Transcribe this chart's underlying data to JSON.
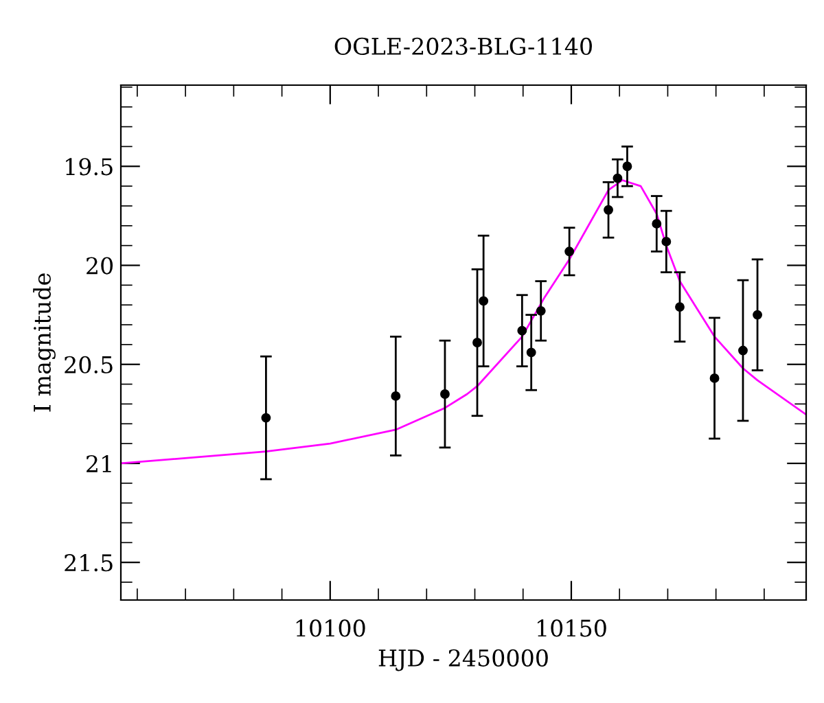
{
  "chart_data": {
    "type": "scatter",
    "title": "OGLE-2023-BLG-1140",
    "xlabel": "HJD - 2450000",
    "ylabel": "I magnitude",
    "xlim": [
      10056.6,
      10198.7
    ],
    "ylim": [
      21.69,
      19.09
    ],
    "xticks": [
      {
        "value": 10060,
        "label": null
      },
      {
        "value": 10070,
        "label": null
      },
      {
        "value": 10080,
        "label": null
      },
      {
        "value": 10090,
        "label": null
      },
      10100,
      {
        "value": 10110,
        "label": null
      },
      {
        "value": 10120,
        "label": null
      },
      {
        "value": 10130,
        "label": null
      },
      {
        "value": 10140,
        "label": null
      },
      10150,
      {
        "value": 10160,
        "label": null
      },
      {
        "value": 10170,
        "label": null
      },
      {
        "value": 10180,
        "label": null
      },
      {
        "value": 10190,
        "label": null
      }
    ],
    "yticks": [
      {
        "value": 19.1,
        "label": null
      },
      {
        "value": 19.2,
        "label": null
      },
      {
        "value": 19.3,
        "label": null
      },
      {
        "value": 19.4,
        "label": null
      },
      19.5,
      {
        "value": 19.6,
        "label": null
      },
      {
        "value": 19.7,
        "label": null
      },
      {
        "value": 19.8,
        "label": null
      },
      {
        "value": 19.9,
        "label": null
      },
      20,
      {
        "value": 20.1,
        "label": null
      },
      {
        "value": 20.2,
        "label": null
      },
      {
        "value": 20.3,
        "label": null
      },
      {
        "value": 20.4,
        "label": null
      },
      20.5,
      {
        "value": 20.6,
        "label": null
      },
      {
        "value": 20.7,
        "label": null
      },
      {
        "value": 20.8,
        "label": null
      },
      {
        "value": 20.9,
        "label": null
      },
      21,
      {
        "value": 21.1,
        "label": null
      },
      {
        "value": 21.2,
        "label": null
      },
      {
        "value": 21.3,
        "label": null
      },
      {
        "value": 21.4,
        "label": null
      },
      21.5,
      {
        "value": 21.6,
        "label": null
      }
    ],
    "grid": false,
    "legend": false,
    "series": [
      {
        "type": "line",
        "color": "#ff00ff",
        "marker": "none",
        "line_style": "solid",
        "x": [
          10056.6,
          10086.7,
          10100,
          10113.6,
          10123.8,
          10128.4,
          10130.5,
          10139.8,
          10144.5,
          10149.6,
          10154,
          10157.7,
          10160.6,
          10164.4,
          10167.7,
          10169.7,
          10172.5,
          10179.7,
          10185.6,
          10188.6,
          10198.5
        ],
        "values": [
          21.0,
          20.94,
          20.9,
          20.83,
          20.72,
          20.65,
          20.61,
          20.36,
          20.16,
          19.97,
          19.78,
          19.62,
          19.57,
          19.6,
          19.74,
          19.9,
          20.08,
          20.36,
          20.52,
          20.58,
          20.75
        ]
      },
      {
        "color": "#000000",
        "marker": "circle",
        "x": [
          10086.7,
          10113.6,
          10123.8,
          10130.5,
          10131.8,
          10139.8,
          10141.7,
          10143.7,
          10149.6,
          10157.7,
          10159.6,
          10161.6,
          10167.7,
          10169.7,
          10172.5,
          10179.7,
          10185.6,
          10188.6
        ],
        "values": [
          20.77,
          20.66,
          20.65,
          20.39,
          20.18,
          20.33,
          20.44,
          20.23,
          19.93,
          19.72,
          19.56,
          19.5,
          19.79,
          19.88,
          20.21,
          20.57,
          20.43,
          20.25
        ],
        "errors": [
          0.31,
          0.3,
          0.27,
          0.37,
          0.33,
          0.18,
          0.19,
          0.15,
          0.12,
          0.14,
          0.095,
          0.1,
          0.14,
          0.155,
          0.175,
          0.305,
          0.355,
          0.28
        ]
      }
    ]
  }
}
